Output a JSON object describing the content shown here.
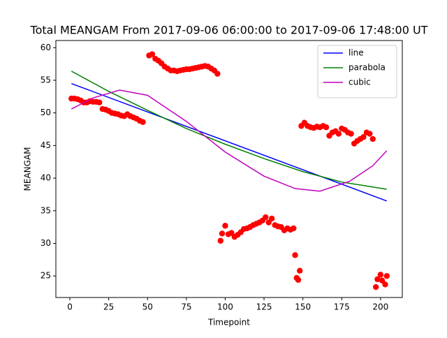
{
  "chart_data": {
    "type": "scatter-fit",
    "title": "Total MEANGAM From 2017-09-06 06:00:00 to 2017-09-06 17:48:00 UT",
    "x_label": "Timepoint",
    "y_label": "MEANGAM",
    "xlim": [
      -9,
      214
    ],
    "ylim": [
      21.7,
      61.1
    ],
    "xticks": [
      0,
      25,
      50,
      75,
      100,
      125,
      150,
      175,
      200
    ],
    "yticks": [
      25,
      30,
      35,
      40,
      45,
      50,
      55,
      60
    ],
    "legend": "upper right",
    "points": {
      "color": "#ff0000",
      "x": [
        1,
        3,
        5,
        7,
        9,
        11,
        13,
        15,
        17,
        19,
        21,
        23,
        25,
        27,
        29,
        31,
        33,
        35,
        37,
        39,
        41,
        43,
        45,
        47,
        51,
        53,
        55,
        57,
        59,
        61,
        63,
        65,
        67,
        69,
        71,
        73,
        75,
        77,
        79,
        81,
        83,
        85,
        87,
        89,
        91,
        93,
        95,
        97,
        98,
        100,
        102,
        104,
        106,
        108,
        110,
        112,
        114,
        116,
        118,
        120,
        122,
        124,
        126,
        128,
        130,
        132,
        134,
        136,
        138,
        140,
        142,
        144,
        145,
        146,
        147,
        148,
        149,
        151,
        153,
        155,
        157,
        159,
        161,
        163,
        165,
        167,
        169,
        171,
        173,
        175,
        177,
        179,
        181,
        183,
        185,
        187,
        189,
        191,
        193,
        195,
        197,
        198,
        200,
        201,
        203,
        204
      ],
      "values": [
        52.2,
        52.2,
        52.1,
        51.9,
        51.6,
        51.6,
        51.8,
        51.7,
        51.7,
        51.6,
        50.6,
        50.5,
        50.3,
        50.0,
        49.9,
        49.8,
        49.6,
        49.5,
        49.8,
        49.5,
        49.3,
        49.1,
        48.8,
        48.6,
        58.8,
        59.0,
        58.3,
        58.0,
        57.6,
        57.1,
        56.8,
        56.5,
        56.5,
        56.4,
        56.5,
        56.6,
        56.7,
        56.7,
        56.8,
        56.9,
        57.0,
        57.1,
        57.2,
        57.1,
        56.8,
        56.5,
        56.0,
        30.4,
        31.5,
        32.7,
        31.4,
        31.6,
        31.0,
        31.3,
        31.7,
        32.2,
        32.3,
        32.5,
        32.8,
        33.0,
        33.2,
        33.5,
        34.0,
        33.2,
        33.8,
        32.8,
        32.6,
        32.5,
        32.0,
        32.3,
        32.1,
        32.3,
        28.2,
        24.7,
        24.4,
        25.8,
        48.0,
        48.5,
        48.0,
        47.8,
        47.7,
        47.9,
        47.8,
        48.0,
        47.8,
        46.5,
        47.0,
        47.2,
        46.8,
        47.6,
        47.4,
        47.0,
        46.8,
        45.3,
        45.7,
        46.0,
        46.3,
        47.0,
        46.8,
        46.0,
        23.3,
        24.5,
        25.2,
        24.3,
        23.7,
        25.0
      ]
    },
    "series": [
      {
        "name": "line",
        "color": "#0000ff",
        "x": [
          1,
          204
        ],
        "values": [
          54.5,
          36.5
        ]
      },
      {
        "name": "parabola",
        "color": "#008000",
        "x": [
          1,
          25,
          50,
          75,
          100,
          125,
          150,
          175,
          204
        ],
        "values": [
          56.4,
          53.3,
          50.4,
          47.6,
          45.2,
          43.0,
          41.0,
          39.4,
          38.3
        ]
      },
      {
        "name": "cubic",
        "color": "#bf00bf",
        "x": [
          1,
          15,
          32,
          50,
          75,
          100,
          125,
          145,
          161,
          180,
          195,
          204
        ],
        "values": [
          50.6,
          52.3,
          53.5,
          52.7,
          48.7,
          44.0,
          40.3,
          38.4,
          38.0,
          39.5,
          41.9,
          44.2
        ]
      }
    ]
  }
}
